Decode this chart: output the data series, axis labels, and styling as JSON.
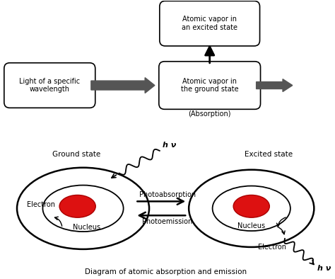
{
  "bg_color": "#ffffff",
  "top_box1_text": "Light of a specific\nwavelength",
  "top_box2_text": "Atomic vapor in\nthe ground state",
  "top_box3_text": "Atomic vapor in\nan excited state",
  "absorption_label": "(Absorption)",
  "ground_state_label": "Ground state",
  "excited_state_label": "Excited state",
  "photoabsorption_label": "Photoabsorption",
  "photoemission_label": "Photoemission",
  "electron_label_left": "Electron",
  "nucleus_label_left": "Nucleus",
  "nucleus_label_right": "Nucleus",
  "electron_label_right": "Electron",
  "bottom_caption": "Diagram of atomic absorption and emission",
  "hv_label_top": "h ν",
  "hv_label_bottom": "h ν",
  "nucleus_color": "#dd1111",
  "line_color": "#000000",
  "text_color": "#000000",
  "arrow_color": "#555555"
}
